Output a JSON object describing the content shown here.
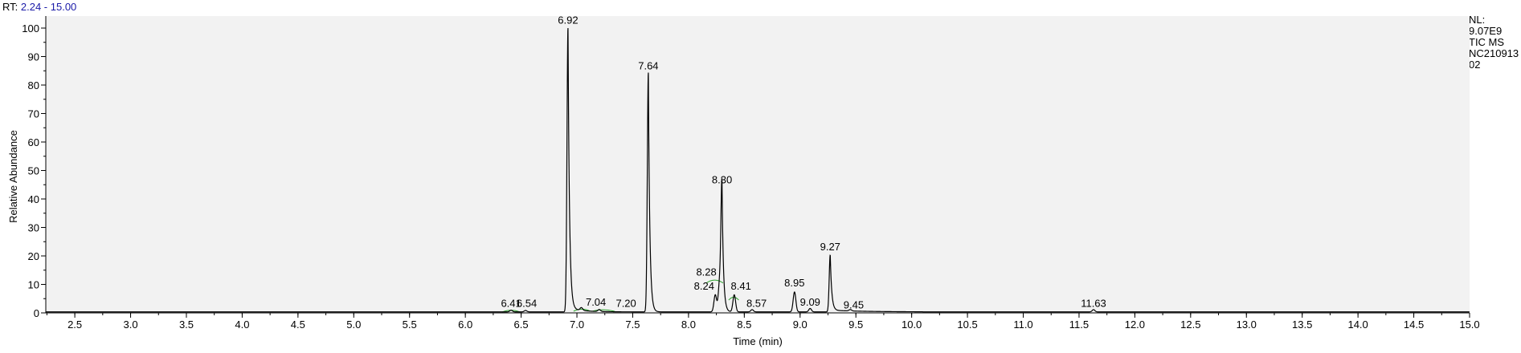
{
  "header": {
    "rt_label": "RT:",
    "rt_range": "2.24 - 15.00"
  },
  "meta": {
    "nl_label": "NL:",
    "nl_value": "9.07E9",
    "scan_type": "TIC  MS",
    "file_line1": "NC210913",
    "file_line2": "02"
  },
  "colors": {
    "background": "#ffffff",
    "plot_area": "#f2f2f2",
    "trace": "#000000",
    "baseline_marker": "#2aa12a",
    "rt_range_text": "#1a1aa8"
  },
  "chart_data": {
    "type": "line",
    "title": "",
    "xlabel": "Time (min)",
    "ylabel": "Relative Abundance",
    "xlim": [
      2.24,
      15.0
    ],
    "ylim": [
      0,
      100
    ],
    "xticks": [
      "2.5",
      "3.0",
      "3.5",
      "4.0",
      "4.5",
      "5.0",
      "5.5",
      "6.0",
      "6.5",
      "7.0",
      "7.5",
      "8.0",
      "8.5",
      "9.0",
      "9.5",
      "10.0",
      "10.5",
      "11.0",
      "11.5",
      "12.0",
      "12.5",
      "13.0",
      "13.5",
      "14.0",
      "14.5",
      "15.0"
    ],
    "yticks": [
      "0",
      "10",
      "20",
      "30",
      "40",
      "50",
      "60",
      "70",
      "80",
      "90",
      "100"
    ],
    "grid": false,
    "peaks": [
      {
        "rt": 6.41,
        "label": "6.41",
        "height": 0.6
      },
      {
        "rt": 6.54,
        "label": "6.54",
        "height": 0.5
      },
      {
        "rt": 6.92,
        "label": "6.92",
        "height": 100
      },
      {
        "rt": 7.04,
        "label": "7.04",
        "height": 1.0
      },
      {
        "rt": 7.2,
        "label": "7.20",
        "height": 0.7
      },
      {
        "rt": 7.64,
        "label": "7.64",
        "height": 84
      },
      {
        "rt": 8.24,
        "label": "8.24",
        "height": 6
      },
      {
        "rt": 8.28,
        "label": "8.28",
        "height": 11
      },
      {
        "rt": 8.3,
        "label": "8.30",
        "height": 44
      },
      {
        "rt": 8.41,
        "label": "8.41",
        "height": 6
      },
      {
        "rt": 8.57,
        "label": "8.57",
        "height": 0.8
      },
      {
        "rt": 8.95,
        "label": "8.95",
        "height": 7
      },
      {
        "rt": 9.09,
        "label": "9.09",
        "height": 1.2
      },
      {
        "rt": 9.27,
        "label": "9.27",
        "height": 20
      },
      {
        "rt": 9.45,
        "label": "9.45",
        "height": 0.5
      },
      {
        "rt": 11.63,
        "label": "11.63",
        "height": 0.8
      }
    ]
  }
}
